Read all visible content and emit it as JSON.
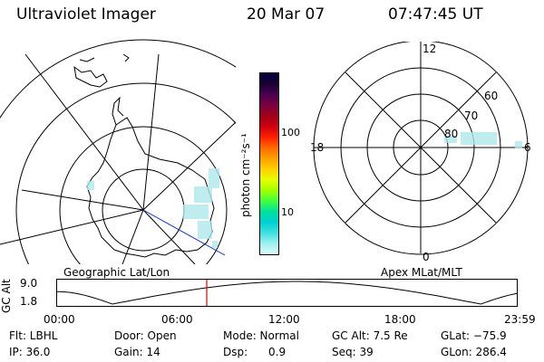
{
  "header": {
    "title": "Ultraviolet Imager",
    "date": "20 Mar 07",
    "time": "07:47:45 UT"
  },
  "left_map": {
    "label": "Geographic Lat/Lon"
  },
  "right_map": {
    "label": "Apex MLat/MLT",
    "mlt_labels": {
      "top": "12",
      "left": "18",
      "right": "6",
      "bottom": "0"
    },
    "lat_labels": [
      "60",
      "70",
      "80"
    ]
  },
  "colorbar": {
    "unit_label": "photon cm⁻²s⁻¹",
    "tick_labels": [
      "100",
      "10"
    ],
    "colors": [
      "#000040",
      "#1a0030",
      "#4a0050",
      "#7a0040",
      "#a0001a",
      "#d00010",
      "#ff2000",
      "#ff6a00",
      "#ffa000",
      "#ffd000",
      "#e8ff00",
      "#a0ff00",
      "#40ff40",
      "#00e0a0",
      "#00d0d0",
      "#40e0e0",
      "#a0f0f0",
      "#e0fafa"
    ]
  },
  "altitude_plot": {
    "ylabel": "GC Alt",
    "y_max_label": "9.0",
    "y_min_label": "1.8",
    "x_tick_labels": [
      "00:00",
      "06:00",
      "12:00",
      "18:00",
      "23:59"
    ],
    "current_hour": 7.796
  },
  "footer": {
    "row1": [
      {
        "label": "Flt: LBHL"
      },
      {
        "label": "Door: Open"
      },
      {
        "label": "Mode: Normal"
      },
      {
        "label": "GC Alt: 7.5 Re"
      },
      {
        "label": "GLat: −75.9"
      }
    ],
    "row2": [
      {
        "label": "IP: 36.0"
      },
      {
        "label": "Gain: 14"
      },
      {
        "label": "Dsp:      0.9"
      },
      {
        "label": "Seq: 39"
      },
      {
        "label": "GLon: 286.4"
      }
    ]
  }
}
